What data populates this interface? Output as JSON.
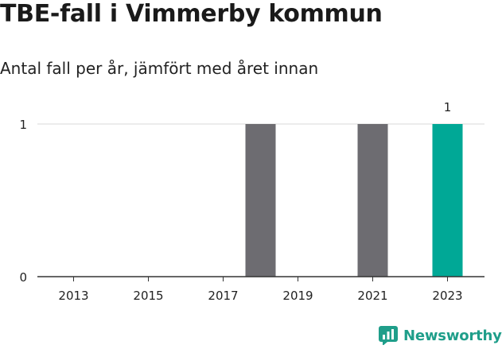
{
  "title": "TBE-fall i Vimmerby kommun",
  "subtitle": "Antal fall per år, jämfört med året innan",
  "brand": {
    "name": "Newsworthy",
    "icon": "newsworthy-logo-icon",
    "color": "#1f9e8a"
  },
  "chart_data": {
    "type": "bar",
    "categories": [
      "2013",
      "2014",
      "2015",
      "2016",
      "2017",
      "2018",
      "2019",
      "2020",
      "2021",
      "2022",
      "2023"
    ],
    "x_tick_labels": [
      "2013",
      "2015",
      "2017",
      "2019",
      "2021",
      "2023"
    ],
    "values": [
      0,
      0,
      0,
      0,
      0,
      1,
      0,
      0,
      1,
      0,
      1
    ],
    "highlight_index": 10,
    "data_labels": [
      {
        "index": 10,
        "text": "1"
      }
    ],
    "y_ticks": [
      0,
      1
    ],
    "ylim": [
      0,
      1
    ],
    "grid": true,
    "colors": {
      "bar": "#6d6c71",
      "highlight": "#00a896",
      "grid": "#d9d9d9",
      "axis": "#333333"
    }
  }
}
